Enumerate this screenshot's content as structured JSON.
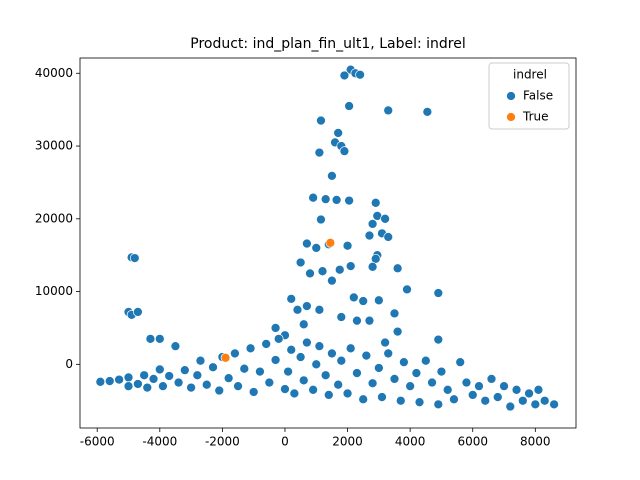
{
  "chart_data": {
    "type": "scatter",
    "title": "Product: ind_plan_fin_ult1, Label: indrel",
    "legend_title": "indrel",
    "legend_position": "upper right",
    "xlim": [
      -6550,
      9300
    ],
    "ylim": [
      -8750,
      42100
    ],
    "xticks": [
      -6000,
      -4000,
      -2000,
      0,
      2000,
      4000,
      6000,
      8000
    ],
    "yticks": [
      0,
      10000,
      20000,
      30000,
      40000
    ],
    "series": [
      {
        "name": "False",
        "color": "#1f77b4",
        "x": [
          2100,
          1900,
          2250,
          2400,
          4550,
          3300,
          2050,
          1150,
          1700,
          1600,
          1800,
          1900,
          1100,
          1500,
          900,
          1300,
          2050,
          1650,
          2900,
          2950,
          3200,
          1150,
          2800,
          3100,
          3300,
          2700,
          700,
          1000,
          1400,
          2000,
          2950,
          2900,
          3600,
          3900,
          4900,
          2100,
          500,
          800,
          1200,
          1500,
          1750,
          2800,
          -4900,
          -4800,
          -5000,
          -4900,
          -4700,
          -4300,
          -4000,
          2500,
          2200,
          3000,
          3500,
          2700,
          4900,
          3600,
          1800,
          2300,
          400,
          200,
          700,
          1100,
          -300,
          0,
          600,
          3200,
          -5900,
          -5600,
          -5300,
          -5000,
          -5000,
          -4700,
          -4500,
          -4400,
          -4200,
          -4000,
          -3900,
          -3700,
          -3500,
          -3400,
          -3200,
          -3000,
          -2800,
          -2700,
          -2500,
          -2300,
          -2100,
          -2000,
          -1800,
          -1600,
          -1500,
          -1300,
          -1100,
          -1000,
          -800,
          -600,
          -500,
          -300,
          -200,
          0,
          100,
          200,
          300,
          500,
          600,
          700,
          900,
          1000,
          1100,
          1300,
          1400,
          1500,
          1700,
          1800,
          2000,
          2100,
          2300,
          2500,
          2600,
          2800,
          3000,
          3100,
          3300,
          3500,
          3700,
          3800,
          4000,
          4200,
          4300,
          4500,
          4700,
          4900,
          5000,
          5200,
          5400,
          5600,
          5800,
          6000,
          6200,
          6400,
          6600,
          6800,
          7000,
          7200,
          7400,
          7600,
          7800,
          8000,
          8100,
          8300,
          8600
        ],
        "y": [
          40500,
          39700,
          40000,
          39800,
          34700,
          34900,
          35500,
          33500,
          31800,
          30500,
          30000,
          29300,
          29100,
          25900,
          22900,
          22700,
          22500,
          22600,
          22200,
          20400,
          20000,
          19900,
          19300,
          18000,
          17500,
          17700,
          16600,
          16000,
          16500,
          16300,
          15000,
          14500,
          13200,
          10300,
          9800,
          13500,
          14000,
          12500,
          12800,
          11500,
          13000,
          13400,
          14700,
          14600,
          7200,
          6800,
          7200,
          3500,
          3500,
          8700,
          9200,
          8800,
          7000,
          6000,
          3400,
          4500,
          6500,
          6000,
          7500,
          9000,
          8000,
          7500,
          5000,
          4000,
          5500,
          3000,
          -2400,
          -2300,
          -2100,
          -1800,
          -3000,
          -2700,
          -1500,
          -3200,
          -2000,
          -700,
          -3000,
          -1600,
          2500,
          -2500,
          -800,
          -3200,
          -1500,
          500,
          -2800,
          -400,
          -3600,
          1000,
          -1900,
          1500,
          -3000,
          -600,
          2200,
          -3800,
          -1000,
          2800,
          -2500,
          600,
          3500,
          -3400,
          -1000,
          2000,
          -4000,
          1000,
          -2200,
          3000,
          -3500,
          0,
          2500,
          -1500,
          -4200,
          1500,
          -2800,
          500,
          -4000,
          2200,
          -1200,
          -4800,
          1200,
          -2600,
          -500,
          -4500,
          1500,
          -2000,
          -5000,
          300,
          -3000,
          -1200,
          -5200,
          500,
          -2500,
          -5500,
          -1000,
          -3500,
          -4800,
          300,
          -2500,
          -4200,
          -3000,
          -5000,
          -2000,
          -4500,
          -3000,
          -5800,
          -3500,
          -5000,
          -4000,
          -5500,
          -3500,
          -5000,
          -5500
        ]
      },
      {
        "name": "True",
        "color": "#ff7f0e",
        "x": [
          1450,
          -1900
        ],
        "y": [
          16700,
          900
        ]
      }
    ]
  }
}
